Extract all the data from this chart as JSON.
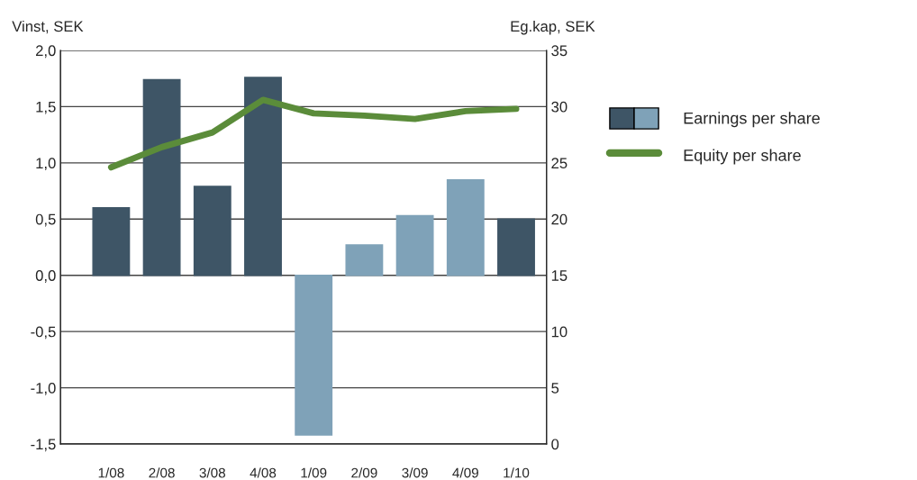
{
  "chart_data": {
    "type": "bar",
    "categories": [
      "1/08",
      "2/08",
      "3/08",
      "4/08",
      "1/09",
      "2/09",
      "3/09",
      "4/09",
      "1/10"
    ],
    "ylabel": "Vinst, SEK",
    "y2label": "Eg.kap, SEK",
    "series": [
      {
        "name": "Earnings per share",
        "colors": [
          "#3e5566",
          "#3e5566",
          "#3e5566",
          "#3e5566",
          "#7fa2b8",
          "#7fa2b8",
          "#7fa2b8",
          "#7fa2b8",
          "#3e5566"
        ],
        "values": [
          0.6,
          1.74,
          0.79,
          1.76,
          -1.42,
          0.27,
          0.53,
          0.85,
          0.5
        ]
      },
      {
        "name": "Equity per share",
        "type": "line",
        "axis": "y2",
        "color": "#5b8c3a",
        "values": [
          24.6,
          26.4,
          27.7,
          30.6,
          29.4,
          29.2,
          28.9,
          29.6,
          29.8
        ]
      }
    ],
    "ylim": [
      -1.5,
      2.0
    ],
    "yticks": [
      {
        "value": -1.5,
        "label": "-1,5"
      },
      {
        "value": -1.0,
        "label": "-1,0"
      },
      {
        "value": -0.5,
        "label": "-0,5"
      },
      {
        "value": 0,
        "label": "0,0"
      },
      {
        "value": 0.5,
        "label": "0,5"
      },
      {
        "value": 1.0,
        "label": "1,0"
      },
      {
        "value": 1.5,
        "label": "1,5"
      },
      {
        "value": 2.0,
        "label": "2,0"
      }
    ],
    "y2lim": [
      0,
      35
    ],
    "y2ticks": [
      0,
      5,
      10,
      15,
      20,
      25,
      30,
      35
    ],
    "grid": "y",
    "legend": "right",
    "marker": "none",
    "line_style": "solid"
  }
}
